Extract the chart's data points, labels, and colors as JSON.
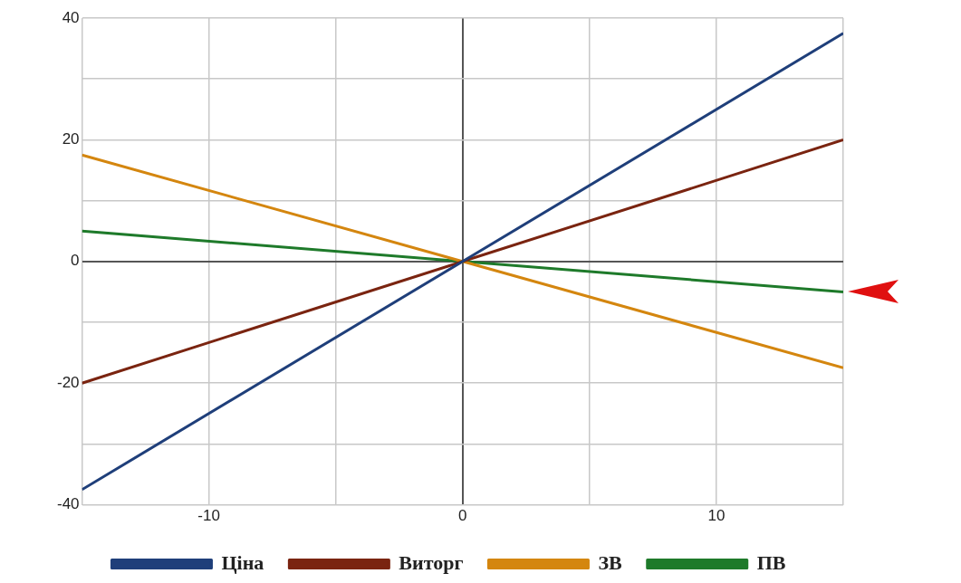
{
  "chart_data": {
    "type": "line",
    "x": [
      -15,
      0,
      15
    ],
    "xlim": [
      -15,
      15
    ],
    "ylim": [
      -40,
      40
    ],
    "xticks": [
      {
        "value": -15,
        "label": null
      },
      -10,
      {
        "value": -5,
        "label": null
      },
      0,
      {
        "value": 5,
        "label": null
      },
      10,
      {
        "value": 15,
        "label": null
      }
    ],
    "yticks": [
      -40,
      {
        "value": -30,
        "label": null
      },
      -20,
      {
        "value": -10,
        "label": null
      },
      0,
      {
        "value": 10,
        "label": null
      },
      20,
      {
        "value": 30,
        "label": null
      },
      40
    ],
    "grid": true,
    "legend": "bottom",
    "marker": "none",
    "line_style": "solid",
    "series": [
      {
        "name": "Ціна",
        "color": "#1f3f7a",
        "values": [
          -37.5,
          0,
          37.5
        ]
      },
      {
        "name": "Виторг",
        "color": "#7a2410",
        "values": [
          -20,
          0,
          20
        ]
      },
      {
        "name": "ЗВ",
        "color": "#d4860f",
        "values": [
          17.5,
          0,
          -17.5
        ]
      },
      {
        "name": "ПВ",
        "color": "#1e7a2a",
        "values": [
          5,
          0,
          -5
        ]
      }
    ]
  }
}
